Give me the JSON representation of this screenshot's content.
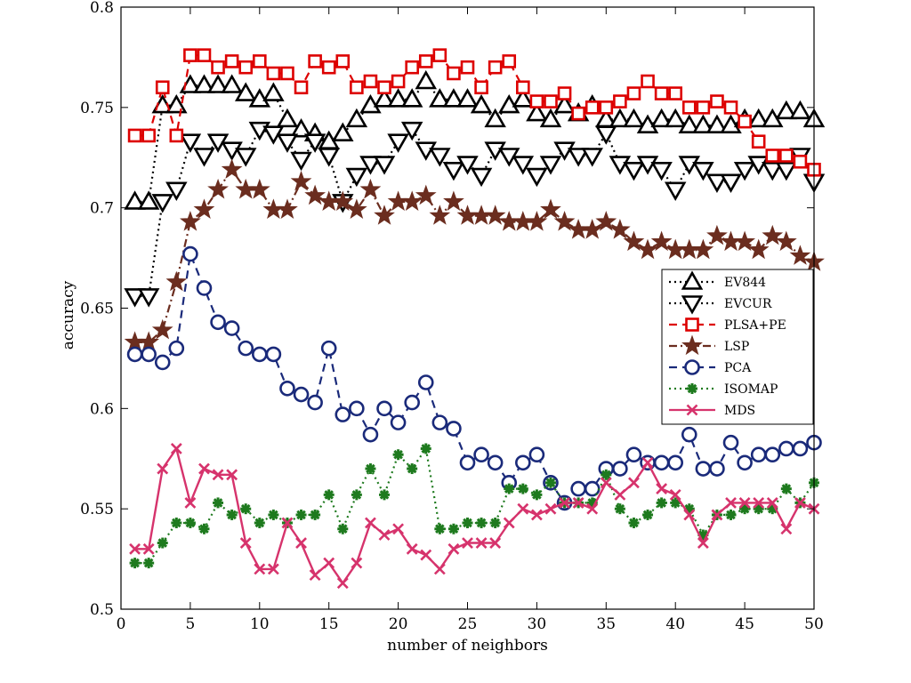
{
  "chart_data": {
    "type": "line",
    "xlabel": "number of neighbors",
    "ylabel": "accuracy",
    "xlim": [
      0,
      50
    ],
    "ylim": [
      0.5,
      0.8
    ],
    "xticks": [
      0,
      5,
      10,
      15,
      20,
      25,
      30,
      35,
      40,
      45,
      50
    ],
    "yticks": [
      0.5,
      0.55,
      0.6,
      0.65,
      0.7,
      0.75,
      0.8
    ],
    "xtick_labels": [
      "0",
      "5",
      "10",
      "15",
      "20",
      "25",
      "30",
      "35",
      "40",
      "45",
      "50"
    ],
    "ytick_labels": [
      "0.5",
      "0.55",
      "0.6",
      "0.65",
      "0.7",
      "0.75",
      "0.8"
    ],
    "grid": false,
    "legend_position": "right",
    "x": [
      1,
      2,
      3,
      4,
      5,
      6,
      7,
      8,
      9,
      10,
      11,
      12,
      13,
      14,
      15,
      16,
      17,
      18,
      19,
      20,
      21,
      22,
      23,
      24,
      25,
      26,
      27,
      28,
      29,
      30,
      31,
      32,
      33,
      34,
      35,
      36,
      37,
      38,
      39,
      40,
      41,
      42,
      43,
      44,
      45,
      46,
      47,
      48,
      49,
      50
    ],
    "series": [
      {
        "name": "EV844",
        "color": "#000000",
        "dash": "dotted",
        "marker": "triangle-up",
        "values": [
          0.703,
          0.703,
          0.751,
          0.751,
          0.761,
          0.761,
          0.761,
          0.761,
          0.757,
          0.754,
          0.757,
          0.744,
          0.739,
          0.737,
          0.733,
          0.737,
          0.744,
          0.751,
          0.754,
          0.754,
          0.754,
          0.763,
          0.754,
          0.754,
          0.754,
          0.751,
          0.744,
          0.751,
          0.754,
          0.747,
          0.744,
          0.751,
          0.747,
          0.751,
          0.744,
          0.744,
          0.744,
          0.741,
          0.744,
          0.744,
          0.741,
          0.741,
          0.741,
          0.741,
          0.744,
          0.744,
          0.744,
          0.748,
          0.748,
          0.744
        ]
      },
      {
        "name": "EVCUR",
        "color": "#000000",
        "dash": "dotted",
        "marker": "triangle-down",
        "values": [
          0.656,
          0.656,
          0.703,
          0.709,
          0.733,
          0.726,
          0.733,
          0.729,
          0.726,
          0.739,
          0.737,
          0.733,
          0.724,
          0.733,
          0.726,
          0.703,
          0.716,
          0.722,
          0.722,
          0.733,
          0.739,
          0.729,
          0.726,
          0.719,
          0.722,
          0.716,
          0.729,
          0.726,
          0.722,
          0.716,
          0.722,
          0.729,
          0.726,
          0.726,
          0.737,
          0.722,
          0.719,
          0.722,
          0.719,
          0.709,
          0.722,
          0.719,
          0.713,
          0.713,
          0.719,
          0.722,
          0.719,
          0.719,
          0.726,
          0.713
        ]
      },
      {
        "name": "PLSA+PE",
        "color": "#dd0000",
        "dash": "dashed",
        "marker": "square",
        "values": [
          0.736,
          0.736,
          0.76,
          0.736,
          0.776,
          0.776,
          0.77,
          0.773,
          0.77,
          0.773,
          0.767,
          0.767,
          0.76,
          0.773,
          0.77,
          0.773,
          0.76,
          0.763,
          0.76,
          0.763,
          0.77,
          0.773,
          0.776,
          0.767,
          0.77,
          0.76,
          0.77,
          0.773,
          0.76,
          0.753,
          0.753,
          0.757,
          0.747,
          0.75,
          0.75,
          0.753,
          0.757,
          0.763,
          0.757,
          0.757,
          0.75,
          0.75,
          0.753,
          0.75,
          0.743,
          0.733,
          0.726,
          0.726,
          0.723,
          0.719
        ]
      },
      {
        "name": "LSP",
        "color": "#6b2d1f",
        "dash": "dashdot",
        "marker": "star",
        "values": [
          0.633,
          0.633,
          0.639,
          0.663,
          0.693,
          0.699,
          0.709,
          0.719,
          0.709,
          0.709,
          0.699,
          0.699,
          0.713,
          0.706,
          0.703,
          0.703,
          0.699,
          0.709,
          0.696,
          0.703,
          0.703,
          0.706,
          0.696,
          0.703,
          0.696,
          0.696,
          0.696,
          0.693,
          0.693,
          0.693,
          0.699,
          0.693,
          0.689,
          0.689,
          0.693,
          0.689,
          0.683,
          0.679,
          0.683,
          0.679,
          0.679,
          0.679,
          0.686,
          0.683,
          0.683,
          0.679,
          0.686,
          0.683,
          0.676,
          0.673
        ]
      },
      {
        "name": "PCA",
        "color": "#1a2a7a",
        "dash": "dashed",
        "marker": "circle",
        "values": [
          0.627,
          0.627,
          0.623,
          0.63,
          0.677,
          0.66,
          0.643,
          0.64,
          0.63,
          0.627,
          0.627,
          0.61,
          0.607,
          0.603,
          0.63,
          0.597,
          0.6,
          0.587,
          0.6,
          0.593,
          0.603,
          0.613,
          0.593,
          0.59,
          0.573,
          0.577,
          0.573,
          0.563,
          0.573,
          0.577,
          0.563,
          0.553,
          0.56,
          0.56,
          0.57,
          0.57,
          0.577,
          0.573,
          0.573,
          0.573,
          0.587,
          0.57,
          0.57,
          0.583,
          0.573,
          0.577,
          0.577,
          0.58,
          0.58,
          0.583
        ]
      },
      {
        "name": "ISOMAP",
        "color": "#1e7a1e",
        "dash": "dotted",
        "marker": "asterisk",
        "values": [
          0.523,
          0.523,
          0.533,
          0.543,
          0.543,
          0.54,
          0.553,
          0.547,
          0.55,
          0.543,
          0.547,
          0.543,
          0.547,
          0.547,
          0.557,
          0.54,
          0.557,
          0.57,
          0.557,
          0.577,
          0.57,
          0.58,
          0.54,
          0.54,
          0.543,
          0.543,
          0.543,
          0.56,
          0.56,
          0.557,
          0.563,
          0.553,
          0.553,
          0.553,
          0.567,
          0.55,
          0.543,
          0.547,
          0.553,
          0.553,
          0.55,
          0.537,
          0.547,
          0.547,
          0.55,
          0.55,
          0.55,
          0.56,
          0.553,
          0.563
        ]
      },
      {
        "name": "MDS",
        "color": "#d6336c",
        "dash": "solid",
        "marker": "x",
        "values": [
          0.53,
          0.53,
          0.57,
          0.58,
          0.553,
          0.57,
          0.567,
          0.567,
          0.533,
          0.52,
          0.52,
          0.543,
          0.533,
          0.517,
          0.523,
          0.513,
          0.523,
          0.543,
          0.537,
          0.54,
          0.53,
          0.527,
          0.52,
          0.53,
          0.533,
          0.533,
          0.533,
          0.543,
          0.55,
          0.547,
          0.55,
          0.553,
          0.553,
          0.55,
          0.563,
          0.557,
          0.563,
          0.573,
          0.56,
          0.557,
          0.547,
          0.533,
          0.547,
          0.553,
          0.553,
          0.553,
          0.553,
          0.54,
          0.553,
          0.55
        ]
      }
    ]
  }
}
